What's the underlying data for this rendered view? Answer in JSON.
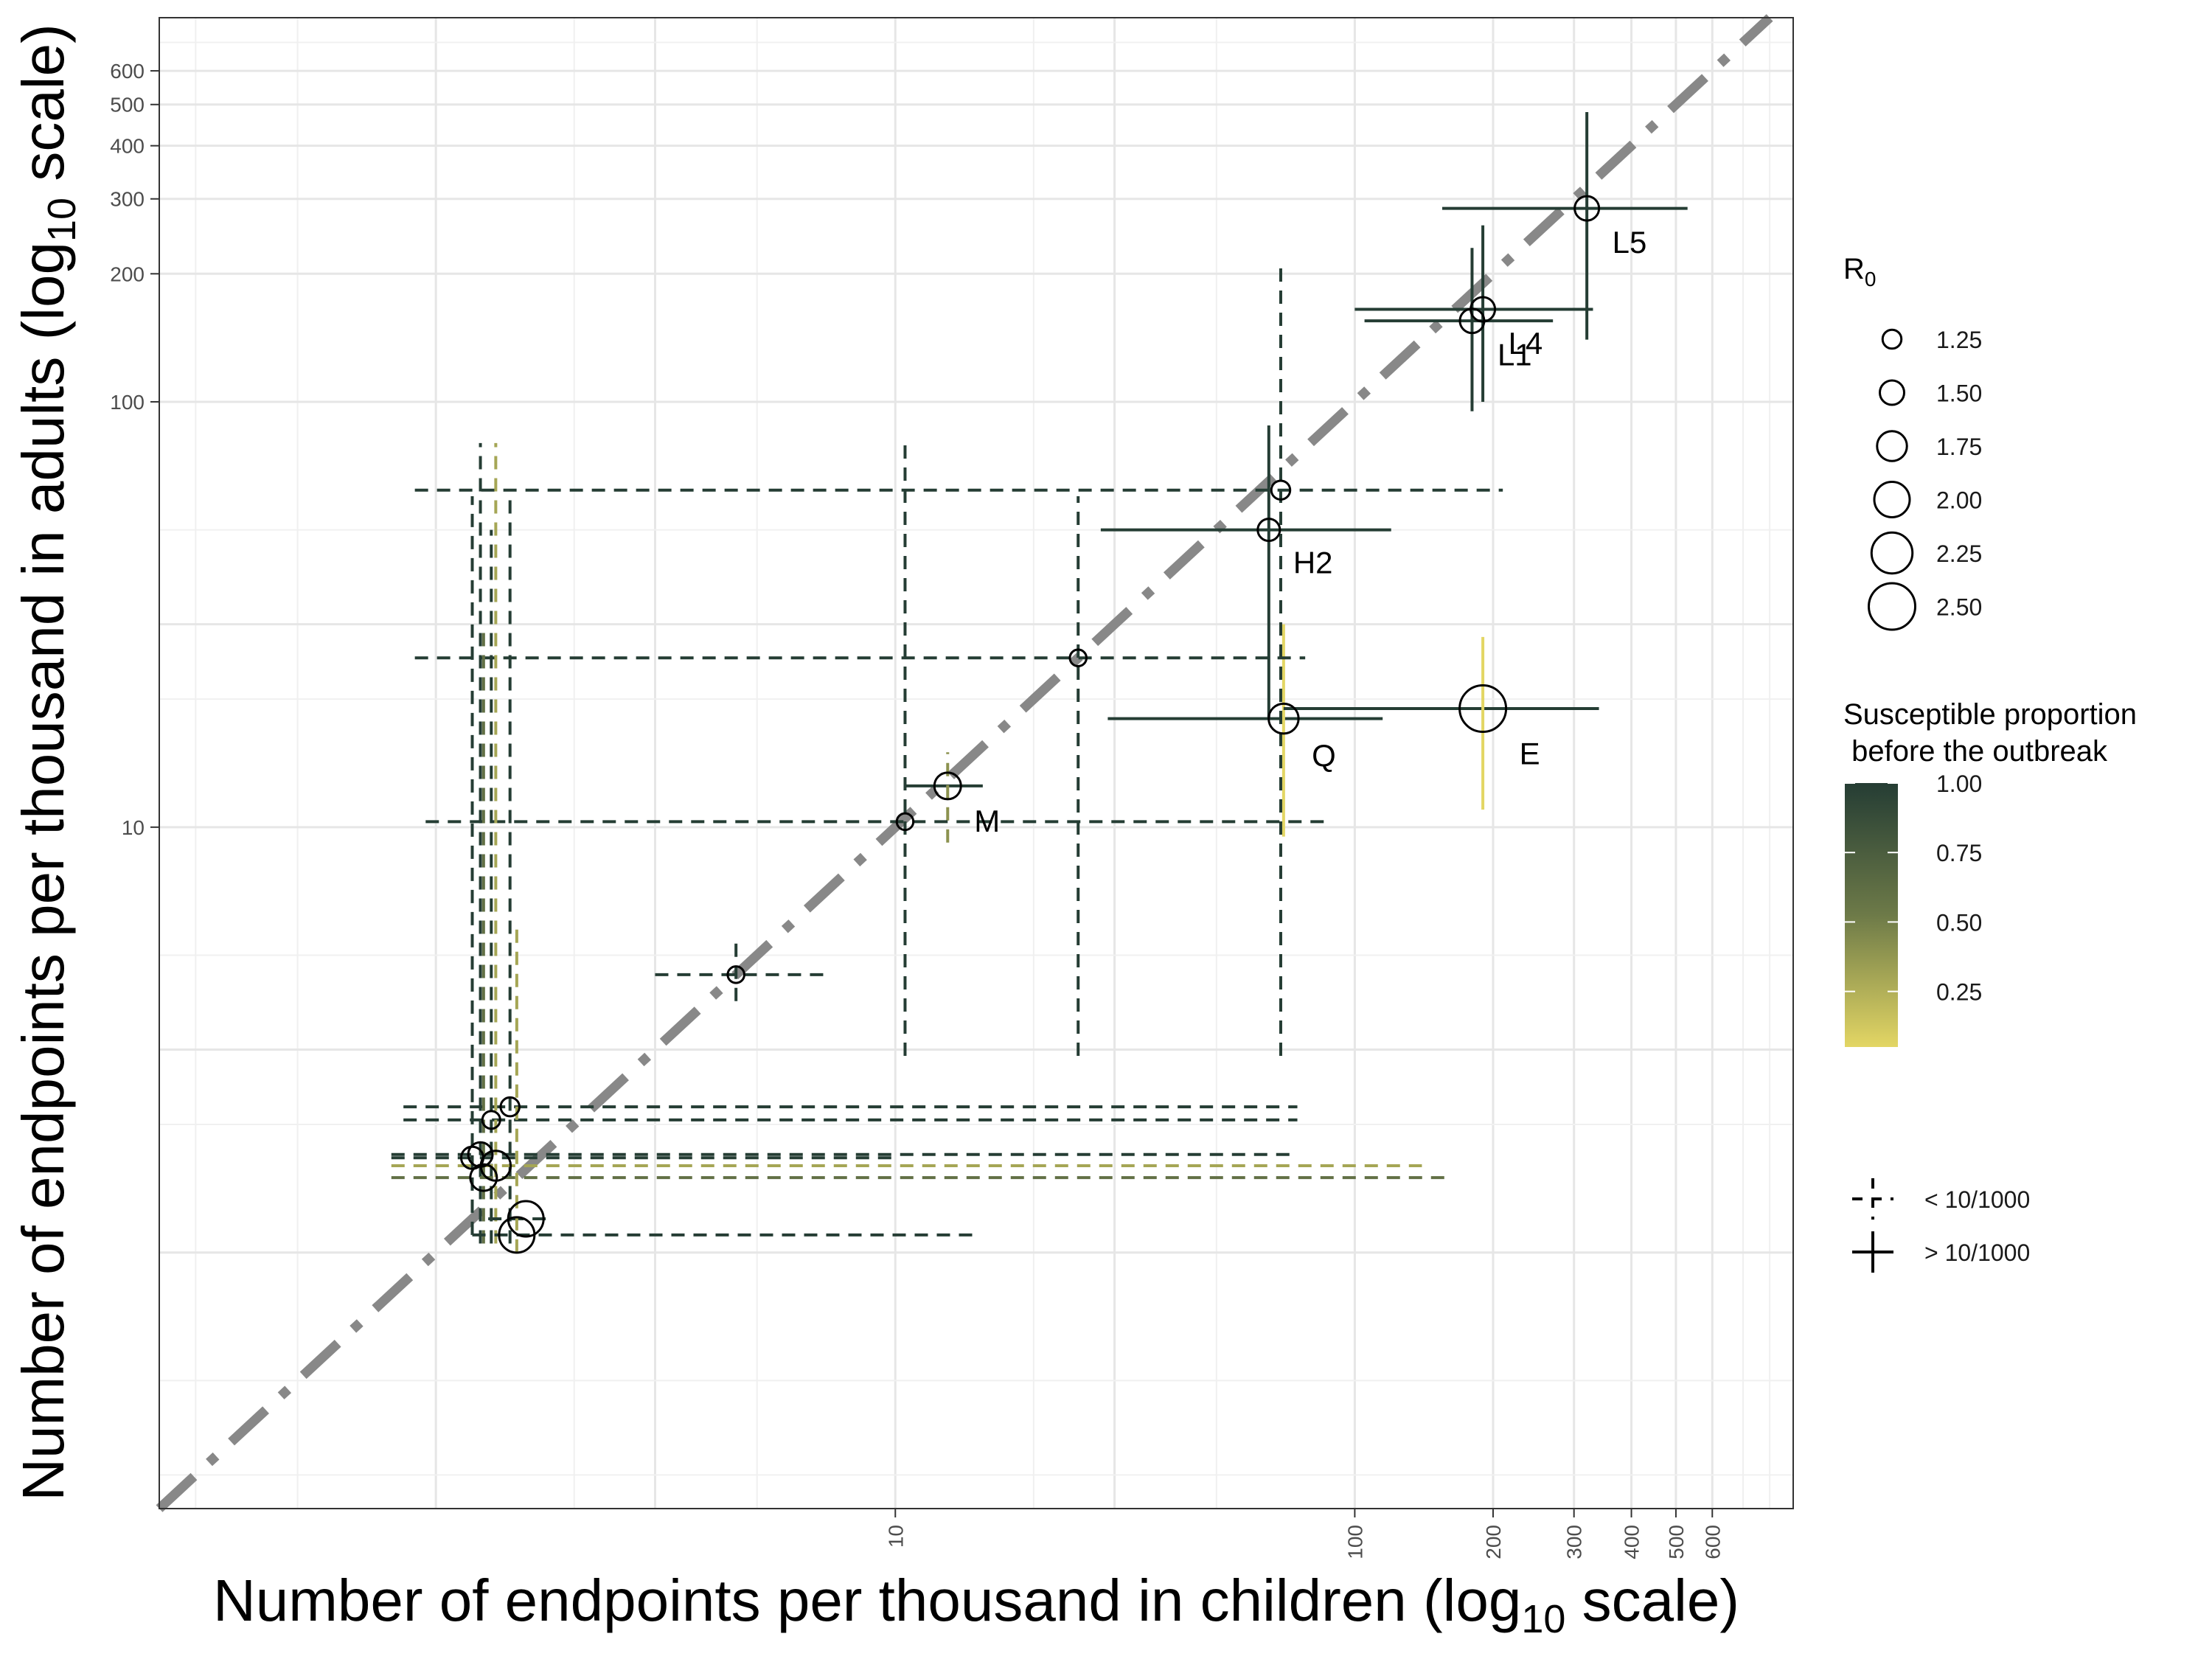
{
  "chart_data": {
    "type": "scatter",
    "x_scale": "log10",
    "y_scale": "log10",
    "xlabel": {
      "main": "Number of endpoints per thousand in children (log",
      "sub": "10",
      "tail": " scale)"
    },
    "ylabel": {
      "main": "Number of endpoints per thousand in adults (log",
      "sub": "10",
      "tail": " scale)"
    },
    "xlim": [
      0.25,
      900
    ],
    "ylim": [
      0.25,
      800
    ],
    "x_ticks": [
      {
        "value": 10,
        "label": "10"
      },
      {
        "value": 100,
        "label": "100"
      },
      {
        "value": 200,
        "label": "200"
      },
      {
        "value": 300,
        "label": "300"
      },
      {
        "value": 400,
        "label": "400"
      },
      {
        "value": 500,
        "label": "500"
      },
      {
        "value": 600,
        "label": "600"
      }
    ],
    "y_ticks": [
      {
        "value": 10,
        "label": "10"
      },
      {
        "value": 100,
        "label": "100"
      },
      {
        "value": 200,
        "label": "200"
      },
      {
        "value": 300,
        "label": "300"
      },
      {
        "value": 400,
        "label": "400"
      },
      {
        "value": 500,
        "label": "500"
      },
      {
        "value": 600,
        "label": "600"
      }
    ],
    "grid_minor": [
      1,
      3,
      30
    ],
    "reference_line": {
      "type": "identity",
      "style": "dash-dot",
      "color": "#888888"
    },
    "color_scale": {
      "low": "#e3d664",
      "high": "#253d34"
    },
    "points": [
      {
        "label": "L5",
        "x": 320,
        "y": 285,
        "r0": 1.5,
        "sus": 1.0,
        "x_lo": 155,
        "x_hi": 530,
        "y_lo": 140,
        "y_hi": 480,
        "style": "solid"
      },
      {
        "label": "L4",
        "x": 190,
        "y": 165,
        "r0": 1.5,
        "sus": 1.0,
        "x_lo": 100,
        "x_hi": 330,
        "y_lo": 100,
        "y_hi": 260,
        "style": "solid"
      },
      {
        "label": "L1",
        "x": 180,
        "y": 155,
        "r0": 1.5,
        "sus": 1.0,
        "x_lo": 105,
        "x_hi": 270,
        "y_lo": 95,
        "y_hi": 230,
        "style": "solid"
      },
      {
        "label": "H2",
        "x": 65,
        "y": 50,
        "r0": 1.4,
        "sus": 1.0,
        "x_lo": 28,
        "x_hi": 120,
        "y_lo": 18,
        "y_hi": 88,
        "style": "solid"
      },
      {
        "label": "Q",
        "x": 70,
        "y": 18,
        "r0": 1.75,
        "sus": 1.0,
        "x_lo": 29,
        "x_hi": 115,
        "y_lo": null,
        "y_hi": null,
        "style": "solid"
      },
      {
        "label": "",
        "x": 70,
        "y": 18,
        "r0": null,
        "sus": 0.05,
        "x_lo": null,
        "x_hi": null,
        "y_lo": 9.5,
        "y_hi": 30,
        "style": "solid"
      },
      {
        "label": "E",
        "x": 190,
        "y": 19,
        "r0": 2.5,
        "sus": 1.0,
        "x_lo": 70,
        "x_hi": 340,
        "y_lo": null,
        "y_hi": null,
        "style": "solid"
      },
      {
        "label": "",
        "x": 190,
        "y": 19,
        "r0": null,
        "sus": 0.05,
        "x_lo": null,
        "x_hi": null,
        "y_lo": 11,
        "y_hi": 28,
        "style": "solid"
      },
      {
        "label": "M",
        "x": 13,
        "y": 12.5,
        "r0": 1.6,
        "sus": 1.0,
        "x_lo": 10.5,
        "x_hi": 15.5,
        "y_lo": null,
        "y_hi": null,
        "style": "solid"
      },
      {
        "label": "",
        "x": 13,
        "y": 12.5,
        "r0": null,
        "sus": 0.4,
        "x_lo": null,
        "x_hi": null,
        "y_lo": 9.2,
        "y_hi": 15,
        "style": "dashed"
      },
      {
        "label": "",
        "x": 69,
        "y": 62,
        "r0": 1.25,
        "sus": 1.0,
        "x_lo": 0.9,
        "x_hi": 210,
        "y_lo": 2.9,
        "y_hi": 210,
        "style": "dashed"
      },
      {
        "label": "",
        "x": 25,
        "y": 25,
        "r0": 1.15,
        "sus": 1.0,
        "x_lo": 0.9,
        "x_hi": 78,
        "y_lo": 2.9,
        "y_hi": 60,
        "style": "dashed"
      },
      {
        "label": "",
        "x": 10.5,
        "y": 10.3,
        "r0": 1.15,
        "sus": 1.0,
        "x_lo": 0.95,
        "x_hi": 88,
        "y_lo": 2.9,
        "y_hi": 80,
        "style": "dashed"
      },
      {
        "label": "",
        "x": 4.5,
        "y": 4.5,
        "r0": 1.15,
        "sus": 1.0,
        "x_lo": 3.0,
        "x_hi": 7.0,
        "y_lo": 3.9,
        "y_hi": 5.4,
        "style": "dashed"
      },
      {
        "label": "",
        "x": 1.45,
        "y": 2.2,
        "r0": 1.25,
        "sus": 1.0,
        "x_lo": 0.85,
        "x_hi": 75,
        "y_lo": 1.05,
        "y_hi": 60,
        "style": "dashed"
      },
      {
        "label": "",
        "x": 1.32,
        "y": 2.05,
        "r0": 1.2,
        "sus": 1.0,
        "x_lo": 0.85,
        "x_hi": 75,
        "y_lo": 1.05,
        "y_hi": 50,
        "style": "dashed"
      },
      {
        "label": "",
        "x": 1.25,
        "y": 1.7,
        "r0": 1.5,
        "sus": 1.0,
        "x_lo": 0.8,
        "x_hi": 75,
        "y_lo": 1.05,
        "y_hi": 80,
        "style": "dashed"
      },
      {
        "label": "",
        "x": 1.2,
        "y": 1.67,
        "r0": 1.4,
        "sus": 1.0,
        "x_lo": 0.8,
        "x_hi": 10,
        "y_lo": 1.1,
        "y_hi": 60,
        "style": "dashed"
      },
      {
        "label": "",
        "x": 1.35,
        "y": 1.6,
        "r0": 1.75,
        "sus": 0.3,
        "x_lo": 0.8,
        "x_hi": 140,
        "y_lo": 1.05,
        "y_hi": 80,
        "style": "dashed"
      },
      {
        "label": "",
        "x": 1.27,
        "y": 1.5,
        "r0": 1.6,
        "sus": 0.6,
        "x_lo": 0.8,
        "x_hi": 160,
        "y_lo": 1.05,
        "y_hi": 30,
        "style": "dashed"
      },
      {
        "label": "",
        "x": 1.57,
        "y": 1.2,
        "r0": 2.0,
        "sus": 1.0,
        "x_lo": 1.3,
        "x_hi": 1.8,
        "y_lo": null,
        "y_hi": null,
        "style": "dashed"
      },
      {
        "label": "",
        "x": 1.5,
        "y": 1.1,
        "r0": 2.0,
        "sus": 1.0,
        "x_lo": 1.2,
        "x_hi": 15,
        "y_lo": null,
        "y_hi": null,
        "style": "dashed"
      },
      {
        "label": "",
        "x": 1.5,
        "y": 1.1,
        "r0": null,
        "sus": 0.3,
        "x_lo": null,
        "x_hi": null,
        "y_lo": 1.0,
        "y_hi": 6.0,
        "style": "dashed"
      }
    ],
    "legend_r0": {
      "title": {
        "main": "R",
        "sub": "0"
      },
      "entries": [
        {
          "label": "1.25",
          "value": 1.25
        },
        {
          "label": "1.50",
          "value": 1.5
        },
        {
          "label": "1.75",
          "value": 1.75
        },
        {
          "label": "2.00",
          "value": 2.0
        },
        {
          "label": "2.25",
          "value": 2.25
        },
        {
          "label": "2.50",
          "value": 2.5
        }
      ]
    },
    "legend_color": {
      "title_line1": "Susceptible proportion",
      "title_line2": " before the outbreak",
      "entries": [
        {
          "label": "1.00",
          "value": 1.0
        },
        {
          "label": "0.75",
          "value": 0.75
        },
        {
          "label": "0.50",
          "value": 0.5
        },
        {
          "label": "0.25",
          "value": 0.25
        }
      ],
      "range": [
        0.05,
        1.0
      ]
    },
    "legend_linetype": {
      "entries": [
        {
          "label": "< 10/1000",
          "style": "dashed"
        },
        {
          "label": "> 10/1000",
          "style": "solid"
        }
      ]
    }
  }
}
